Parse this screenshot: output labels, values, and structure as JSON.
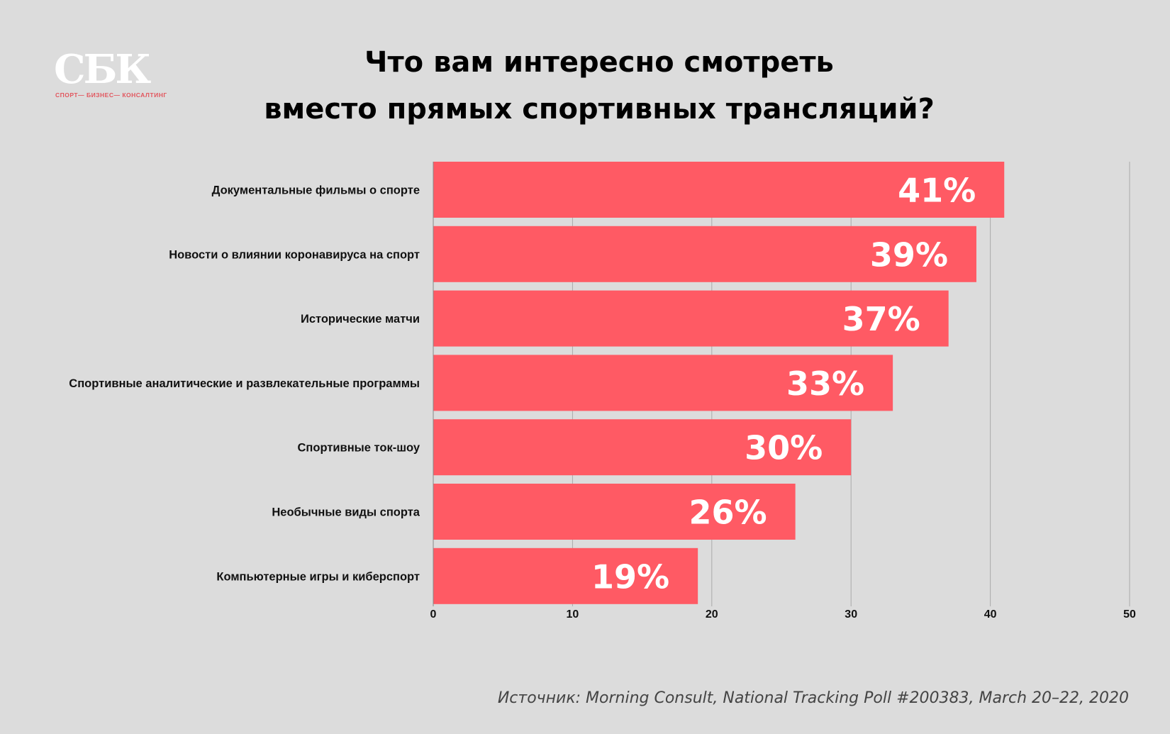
{
  "logo": {
    "mark": "СБК",
    "tagline": "СПОРТ— БИЗНЕС— КОНСАЛТИНГ"
  },
  "title_lines": [
    "Что вам интересно смотреть",
    "вместо прямых спортивных трансляций?"
  ],
  "source": "Источник: Morning Consult, National Tracking Poll #200383, March 20–22, 2020",
  "colors": {
    "background": "#dcdcdc",
    "bar": "#ff5a64",
    "bar_label": "#ffffff",
    "gridline": "#aaaaaa",
    "logo_accent": "#e2565e"
  },
  "chart_data": {
    "type": "bar",
    "orientation": "horizontal",
    "title": "Что вам интересно смотреть вместо прямых спортивных трансляций?",
    "categories": [
      "Документальные фильмы о спорте",
      "Новости о влиянии коронавируса на спорт",
      "Исторические матчи",
      "Спортивные аналитические и развлекательные программы",
      "Спортивные ток-шоу",
      "Необычные виды спорта",
      "Компьютерные игры и киберспорт"
    ],
    "values": [
      41,
      39,
      37,
      33,
      30,
      26,
      19
    ],
    "value_labels": [
      "41%",
      "39%",
      "37%",
      "33%",
      "30%",
      "26%",
      "19%"
    ],
    "xlim": [
      0,
      50
    ],
    "x_ticks": [
      0,
      10,
      20,
      30,
      40,
      50
    ],
    "x_tick_labels": [
      "0",
      "10",
      "20",
      "30",
      "40",
      "50"
    ],
    "xlabel": "",
    "ylabel": "",
    "grid": "vertical"
  }
}
